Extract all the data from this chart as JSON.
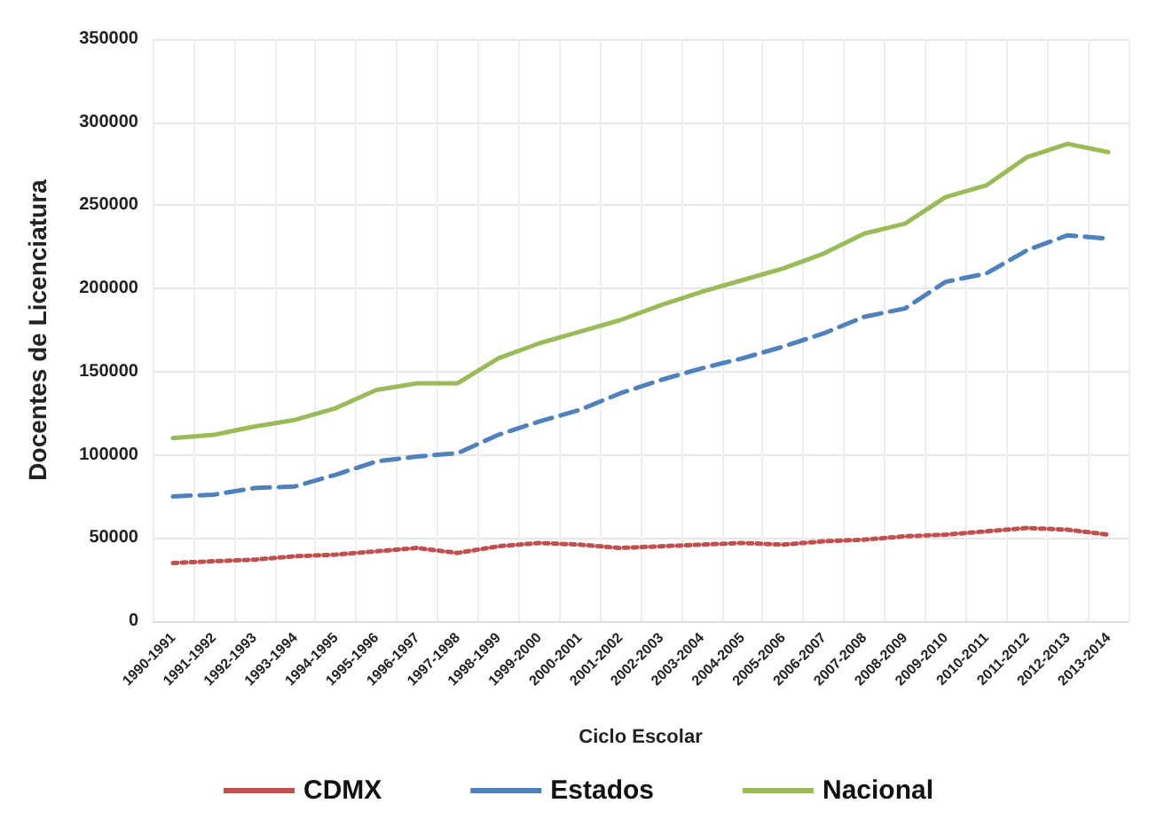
{
  "chart_data": {
    "type": "line",
    "xlabel": "Ciclo Escolar",
    "ylabel": "Docentes de Licenciatura",
    "categories": [
      "1990-1991",
      "1991-1992",
      "1992-1993",
      "1993-1994",
      "1994-1995",
      "1995-1996",
      "1996-1997",
      "1997-1998",
      "1998-1999",
      "1999-2000",
      "2000-2001",
      "2001-2002",
      "2002-2003",
      "2003-2004",
      "2004-2005",
      "2005-2006",
      "2006-2007",
      "2007-2008",
      "2008-2009",
      "2009-2010",
      "2010-2011",
      "2011-2012",
      "2012-2013",
      "2013-2014"
    ],
    "series": [
      {
        "name": "CDMX",
        "color": "#c0504d",
        "line_style": "dotted",
        "values": [
          35000,
          36000,
          37000,
          39000,
          40000,
          42000,
          44000,
          41000,
          45000,
          47000,
          46000,
          44000,
          45000,
          46000,
          47000,
          46000,
          48000,
          49000,
          51000,
          52000,
          54000,
          56000,
          55000,
          52000
        ]
      },
      {
        "name": "Estados",
        "color": "#4f81bd",
        "line_style": "dashed",
        "values": [
          75000,
          76000,
          80000,
          81000,
          88000,
          96000,
          99000,
          101000,
          112000,
          120000,
          127000,
          137000,
          145000,
          152000,
          158000,
          165000,
          173000,
          183000,
          188000,
          204000,
          209000,
          223000,
          232000,
          230000
        ]
      },
      {
        "name": "Nacional",
        "color": "#9bbb59",
        "line_style": "solid",
        "values": [
          110000,
          112000,
          117000,
          121000,
          128000,
          139000,
          143000,
          143000,
          158000,
          167000,
          174000,
          181000,
          190000,
          198000,
          205000,
          212000,
          221000,
          233000,
          239000,
          255000,
          262000,
          279000,
          287000,
          282000
        ]
      }
    ],
    "ylim": [
      0,
      350000
    ],
    "yticks": [
      0,
      50000,
      100000,
      150000,
      200000,
      250000,
      300000,
      350000
    ],
    "grid": true,
    "legend": "bottom",
    "marker": "none"
  }
}
